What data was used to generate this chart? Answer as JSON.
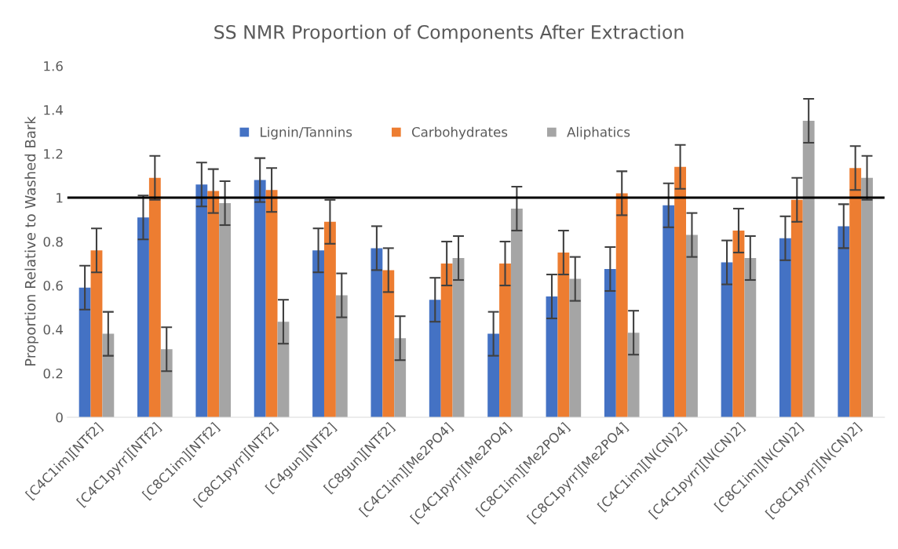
{
  "chart_data": {
    "type": "bar",
    "title": "SS NMR Proportion of Components After Extraction",
    "ylabel": "Proportion Relative to Washed Bark",
    "categories": [
      "[C4C1im][NTf2]",
      "[C4C1pyrr][NTf2]",
      "[C8C1im][NTf2]",
      "[C8C1pyrr][NTf2]",
      "[C4gun][NTf2]",
      "[C8gun][NTf2]",
      "[C4C1im][Me2PO4]",
      "[C4C1pyrr][Me2PO4]",
      "[C8C1im][Me2PO4]",
      "[C8C1pyrr][Me2PO4]",
      "[C4C1im][N(CN)2]",
      "[C4C1pyrr][N(CN)2]",
      "[C8C1im][N(CN)2]",
      "[C8C1pyrr][N(CN)2]"
    ],
    "series": [
      {
        "name": "Lignin/Tannins",
        "color": "#4472c4",
        "values": [
          0.59,
          0.91,
          1.06,
          1.08,
          0.76,
          0.77,
          0.535,
          0.38,
          0.55,
          0.675,
          0.965,
          0.705,
          0.815,
          0.87
        ],
        "errors": [
          0.1,
          0.1,
          0.1,
          0.1,
          0.1,
          0.1,
          0.1,
          0.1,
          0.1,
          0.1,
          0.1,
          0.1,
          0.1,
          0.1
        ]
      },
      {
        "name": "Carbohydrates",
        "color": "#ed7d31",
        "values": [
          0.76,
          1.09,
          1.03,
          1.035,
          0.89,
          0.67,
          0.7,
          0.7,
          0.75,
          1.02,
          1.14,
          0.85,
          0.99,
          1.135
        ],
        "errors": [
          0.1,
          0.1,
          0.1,
          0.1,
          0.1,
          0.1,
          0.1,
          0.1,
          0.1,
          0.1,
          0.1,
          0.1,
          0.1,
          0.1
        ]
      },
      {
        "name": "Aliphatics",
        "color": "#a5a5a5",
        "values": [
          0.38,
          0.31,
          0.975,
          0.435,
          0.555,
          0.36,
          0.725,
          0.95,
          0.63,
          0.385,
          0.83,
          0.725,
          1.35,
          1.09
        ],
        "errors": [
          0.1,
          0.1,
          0.1,
          0.1,
          0.1,
          0.1,
          0.1,
          0.1,
          0.1,
          0.1,
          0.1,
          0.1,
          0.1,
          0.1
        ]
      }
    ],
    "ylim": [
      0,
      1.6
    ],
    "yticks": [
      0,
      0.2,
      0.4,
      0.6,
      0.8,
      1,
      1.2,
      1.4,
      1.6
    ],
    "ref_lines": [
      {
        "axis": "y",
        "value": 1,
        "color": "#000000"
      }
    ],
    "grid": false,
    "legend": "top"
  }
}
